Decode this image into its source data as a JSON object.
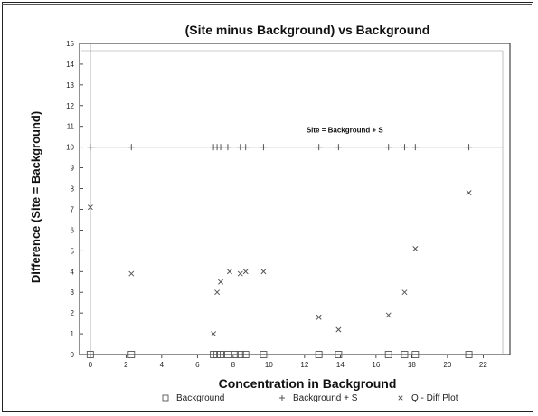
{
  "chart_data": {
    "type": "scatter",
    "title": "(Site minus Background) vs Background",
    "xlabel": "Concentration in Background",
    "ylabel": "Difference (Site = Background)",
    "xlim": [
      -0.6,
      23.5
    ],
    "ylim": [
      0,
      15
    ],
    "xticks": [
      "0",
      "2",
      "4",
      "6",
      "8",
      "10",
      "12",
      "14",
      "16",
      "18",
      "20",
      "22"
    ],
    "yticks": [
      "0",
      "1",
      "2",
      "3",
      "4",
      "5",
      "6",
      "7",
      "8",
      "9",
      "10",
      "11",
      "12",
      "13",
      "14",
      "15"
    ],
    "reference_line": {
      "y": 10,
      "label": "Site = Background + S"
    },
    "vertical_line": {
      "x": 0
    },
    "series": [
      {
        "name": "Background",
        "marker": "square",
        "points": [
          [
            0,
            0
          ],
          [
            2.3,
            0
          ],
          [
            6.9,
            0
          ],
          [
            7.1,
            0
          ],
          [
            7.3,
            0
          ],
          [
            7.7,
            0
          ],
          [
            8.1,
            0
          ],
          [
            8.4,
            0
          ],
          [
            8.7,
            0
          ],
          [
            9.7,
            0
          ],
          [
            12.8,
            0
          ],
          [
            13.9,
            0
          ],
          [
            16.7,
            0
          ],
          [
            17.6,
            0
          ],
          [
            18.2,
            0
          ],
          [
            21.2,
            0
          ]
        ]
      },
      {
        "name": "Background + S",
        "marker": "plus",
        "points": [
          [
            0,
            10
          ],
          [
            2.3,
            10
          ],
          [
            6.9,
            10
          ],
          [
            7.1,
            10
          ],
          [
            7.3,
            10
          ],
          [
            7.7,
            10
          ],
          [
            8.4,
            10
          ],
          [
            8.7,
            10
          ],
          [
            9.7,
            10
          ],
          [
            12.8,
            10
          ],
          [
            13.9,
            10
          ],
          [
            16.7,
            10
          ],
          [
            17.6,
            10
          ],
          [
            18.2,
            10
          ],
          [
            21.2,
            10
          ]
        ]
      },
      {
        "name": "Q - Diff Plot",
        "marker": "x",
        "points": [
          [
            0,
            7.1
          ],
          [
            2.3,
            3.9
          ],
          [
            6.9,
            1.0
          ],
          [
            7.1,
            3.0
          ],
          [
            7.3,
            3.5
          ],
          [
            7.8,
            4.0
          ],
          [
            8.4,
            3.9
          ],
          [
            8.7,
            4.0
          ],
          [
            9.7,
            4.0
          ],
          [
            12.8,
            1.8
          ],
          [
            13.9,
            1.2
          ],
          [
            16.7,
            1.9
          ],
          [
            17.6,
            3.0
          ],
          [
            18.2,
            5.1
          ],
          [
            21.2,
            7.8
          ]
        ]
      }
    ]
  },
  "legend": {
    "items": [
      {
        "label": "Background",
        "marker": "square"
      },
      {
        "label": "Background + S",
        "marker": "plus"
      },
      {
        "label": "Q - Diff Plot",
        "marker": "x"
      }
    ]
  },
  "colors": {
    "marker": "#555555",
    "axis": "#222222",
    "reference_line": "#666666"
  }
}
